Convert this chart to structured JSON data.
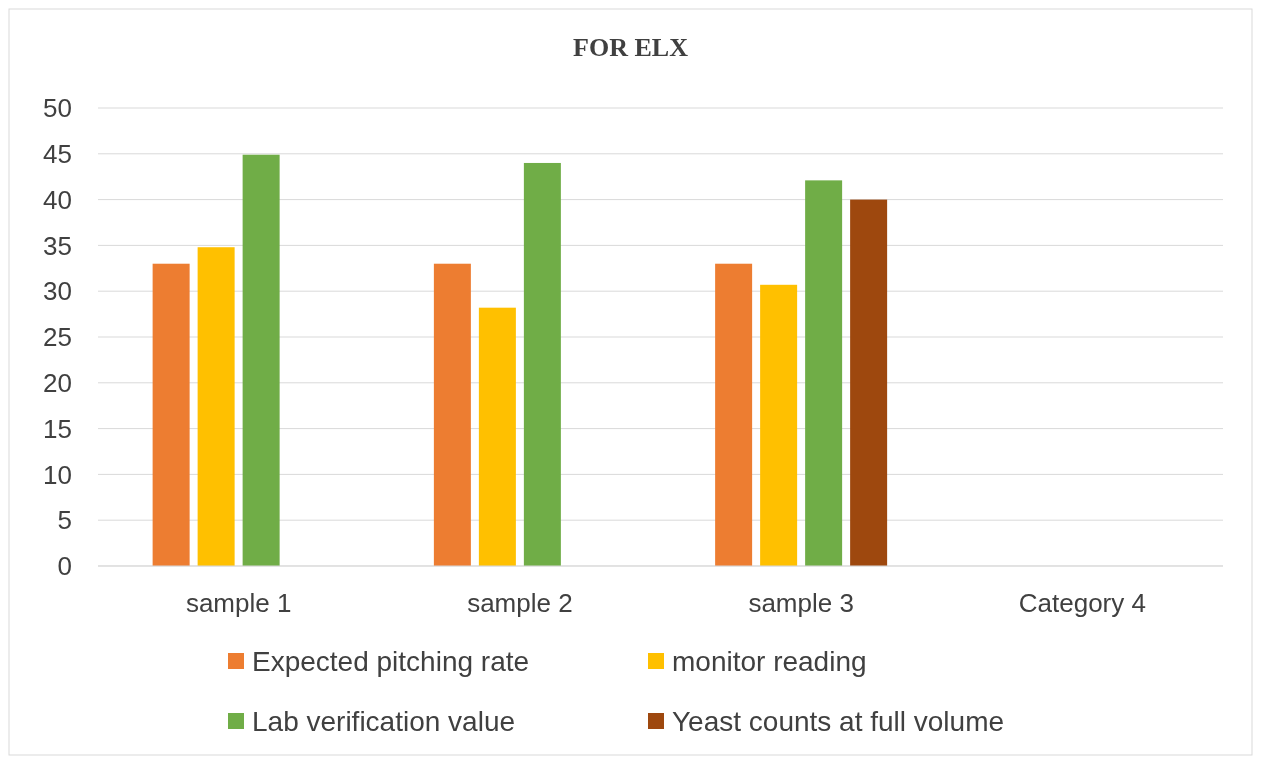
{
  "chart_data": {
    "type": "bar",
    "title": "FOR ELX",
    "categories": [
      "sample 1",
      "sample 2",
      "sample 3",
      "Category 4"
    ],
    "series": [
      {
        "name": "Expected pitching rate",
        "color": "#ed7d31",
        "values": [
          33,
          33,
          33,
          null
        ]
      },
      {
        "name": "monitor reading",
        "color": "#ffc000",
        "values": [
          34.8,
          28.2,
          30.7,
          null
        ]
      },
      {
        "name": "Lab verification value",
        "color": "#70ad47",
        "values": [
          44.9,
          44,
          42.1,
          null
        ]
      },
      {
        "name": "Yeast counts at full volume",
        "color": "#9e480e",
        "values": [
          null,
          null,
          40,
          null
        ]
      }
    ],
    "ylim": [
      0,
      50
    ],
    "yticks": [
      0,
      5,
      10,
      15,
      20,
      25,
      30,
      35,
      40,
      45,
      50
    ],
    "grid": "y",
    "legend": "bottom"
  }
}
